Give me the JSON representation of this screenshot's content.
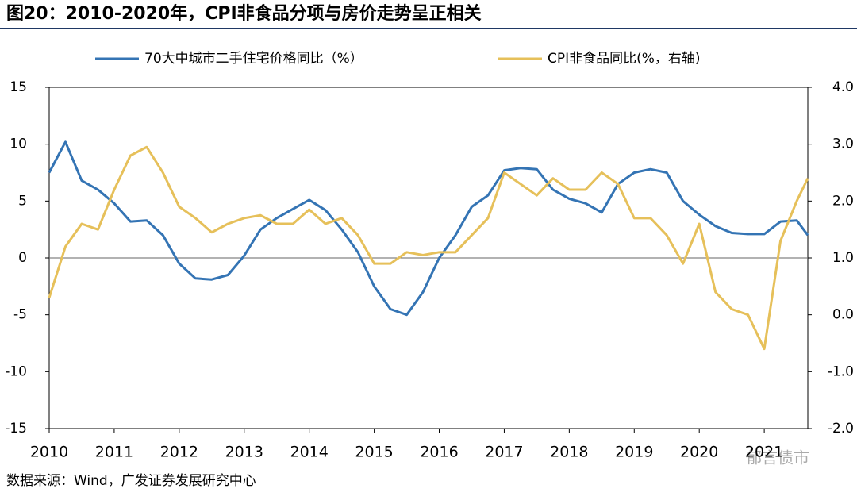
{
  "chart_data": {
    "type": "line",
    "title": "图20：2010-2020年，CPI非食品分项与房价走势呈正相关",
    "source": "数据来源：Wind，广发证券发展研究中心",
    "watermark": "郁言债市",
    "x": [
      2010.0,
      2010.25,
      2010.5,
      2010.75,
      2011.0,
      2011.25,
      2011.5,
      2011.75,
      2012.0,
      2012.25,
      2012.5,
      2012.75,
      2013.0,
      2013.25,
      2013.5,
      2013.75,
      2014.0,
      2014.25,
      2014.5,
      2014.75,
      2015.0,
      2015.25,
      2015.5,
      2015.75,
      2016.0,
      2016.25,
      2016.5,
      2016.75,
      2017.0,
      2017.25,
      2017.5,
      2017.75,
      2018.0,
      2018.25,
      2018.5,
      2018.75,
      2019.0,
      2019.25,
      2019.5,
      2019.75,
      2020.0,
      2020.25,
      2020.5,
      2020.75,
      2021.0,
      2021.25,
      2021.5,
      2021.67
    ],
    "series": [
      {
        "name": "70大中城市二手住宅价格同比（%）",
        "color": "#3474b4",
        "axis": "y",
        "values": [
          7.5,
          10.2,
          6.8,
          6.0,
          4.8,
          3.2,
          3.3,
          2.0,
          -0.5,
          -1.8,
          -1.9,
          -1.5,
          0.2,
          2.5,
          3.5,
          4.3,
          5.1,
          4.2,
          2.5,
          0.5,
          -2.5,
          -4.5,
          -5.0,
          -3.0,
          0.0,
          2.0,
          4.5,
          5.5,
          7.7,
          7.9,
          7.8,
          6.0,
          5.2,
          4.8,
          4.0,
          6.5,
          7.5,
          7.8,
          7.5,
          5.0,
          3.8,
          2.8,
          2.2,
          2.1,
          2.1,
          3.2,
          3.3,
          2.0
        ]
      },
      {
        "name": "CPI非食品同比(%，右轴)",
        "color": "#e6c05a",
        "axis": "y2",
        "values": [
          0.3,
          1.2,
          1.6,
          1.5,
          2.2,
          2.8,
          2.95,
          2.5,
          1.9,
          1.7,
          1.45,
          1.6,
          1.7,
          1.75,
          1.6,
          1.6,
          1.85,
          1.6,
          1.7,
          1.4,
          0.9,
          0.9,
          1.1,
          1.05,
          1.1,
          1.1,
          1.4,
          1.7,
          2.5,
          2.3,
          2.1,
          2.4,
          2.2,
          2.2,
          2.5,
          2.3,
          1.7,
          1.7,
          1.4,
          0.9,
          1.6,
          0.4,
          0.1,
          0.0,
          -0.6,
          1.3,
          2.0,
          2.4
        ]
      }
    ],
    "xlim": [
      2010,
      2021.67
    ],
    "xticks": [
      2010,
      2011,
      2012,
      2013,
      2014,
      2015,
      2016,
      2017,
      2018,
      2019,
      2020,
      2021
    ],
    "ylim": [
      -15,
      15
    ],
    "yticks": [
      -15,
      -10,
      -5,
      0,
      5,
      10,
      15
    ],
    "y2lim": [
      -2,
      4
    ],
    "y2ticks": [
      {
        "value": -2,
        "label": "-2.0"
      },
      {
        "value": -1,
        "label": "-1.0"
      },
      {
        "value": 0,
        "label": "0.0"
      },
      {
        "value": 1,
        "label": "1.0"
      },
      {
        "value": 2,
        "label": "2.0"
      },
      {
        "value": 3,
        "label": "3.0"
      },
      {
        "value": 4,
        "label": "4.0"
      }
    ],
    "legend": "top"
  }
}
